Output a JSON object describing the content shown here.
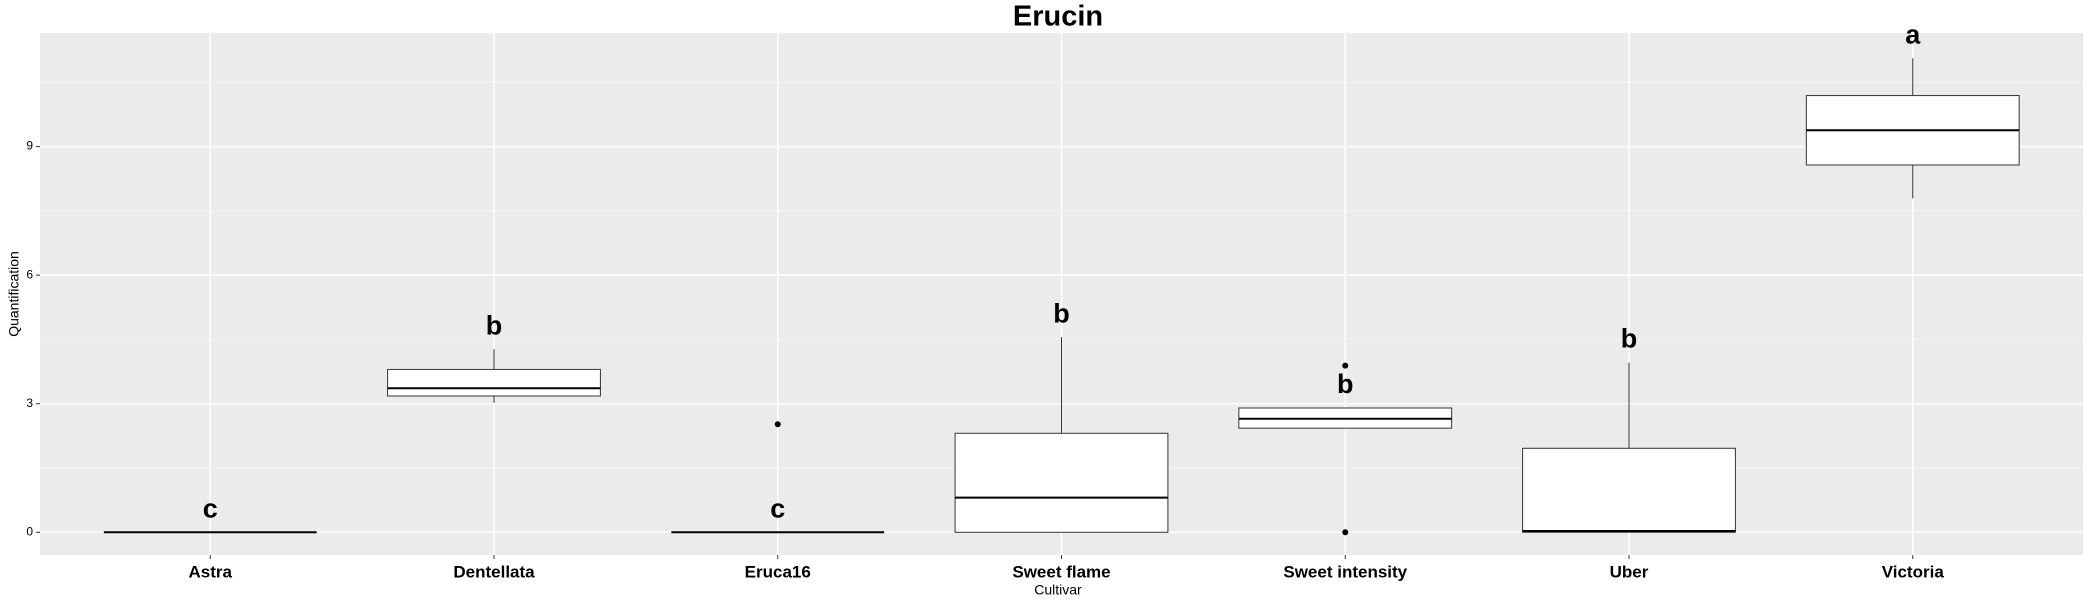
{
  "chart_data": {
    "type": "box",
    "title": "Erucin",
    "x_label": "Cultivar",
    "y_label": "Quantification",
    "categories": [
      "Astra",
      "Dentellata",
      "Eruca16",
      "Sweet flame",
      "Sweet intensity",
      "Uber",
      "Victoria"
    ],
    "boxes": [
      {
        "min": 0,
        "q1": 0,
        "median": 0,
        "q3": 0,
        "max": 0,
        "outliers": []
      },
      {
        "min": 3.02,
        "q1": 3.18,
        "median": 3.36,
        "q3": 3.8,
        "max": 4.27,
        "outliers": []
      },
      {
        "min": 0,
        "q1": 0,
        "median": 0,
        "q3": 0,
        "max": 0,
        "outliers": [
          2.52
        ]
      },
      {
        "min": 0,
        "q1": 0,
        "median": 0.81,
        "q3": 2.31,
        "max": 4.55,
        "outliers": []
      },
      {
        "min": 2.43,
        "q1": 2.43,
        "median": 2.65,
        "q3": 2.9,
        "max": 2.9,
        "outliers": [
          3.89,
          0
        ]
      },
      {
        "min": 0,
        "q1": 0,
        "median": 0.03,
        "q3": 1.96,
        "max": 3.96,
        "outliers": []
      },
      {
        "min": 7.79,
        "q1": 8.57,
        "median": 9.38,
        "q3": 10.19,
        "max": 11.06,
        "outliers": []
      }
    ],
    "letters": [
      "c",
      "b",
      "c",
      "b",
      "b",
      "b",
      "a"
    ],
    "ylim": [
      -0.53,
      11.65
    ],
    "yticks": [
      0,
      3,
      6,
      9
    ],
    "grid": true
  }
}
